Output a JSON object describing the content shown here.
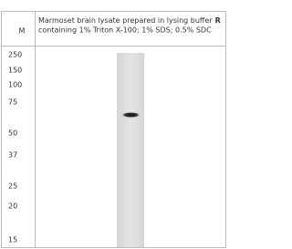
{
  "header": {
    "marker_column": "M",
    "line1": "Marmoset brain lysate prepared in lysing buffer",
    "buffer": "R",
    "line2": "containing 1% Triton X-100; 1% SDS; 0.5% SDC"
  },
  "markers": [
    "250",
    "150",
    "100",
    "75",
    "50",
    "37",
    "25",
    "20",
    "15"
  ]
}
